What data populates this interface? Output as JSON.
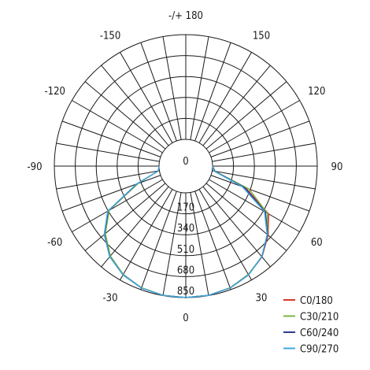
{
  "chart_data": {
    "type": "polar",
    "angle_labels": [
      {
        "deg": 180,
        "text": "-/+ 180"
      },
      {
        "deg": -150,
        "text": "-150"
      },
      {
        "deg": 150,
        "text": "150"
      },
      {
        "deg": -120,
        "text": "-120"
      },
      {
        "deg": 120,
        "text": "120"
      },
      {
        "deg": -90,
        "text": "-90"
      },
      {
        "deg": 90,
        "text": "90"
      },
      {
        "deg": -60,
        "text": "-60"
      },
      {
        "deg": 60,
        "text": "60"
      },
      {
        "deg": -30,
        "text": "-30"
      },
      {
        "deg": 30,
        "text": "30"
      },
      {
        "deg": 0,
        "text": "0"
      }
    ],
    "radial_axis": {
      "max": 850,
      "ticks": [
        0,
        170,
        340,
        510,
        680,
        850
      ],
      "tick_labels": [
        "0",
        "170",
        "340",
        "510",
        "680",
        "850"
      ]
    },
    "angle_grid_step_deg": 10,
    "grid": true,
    "legend_position": "bottom-right",
    "series": [
      {
        "name": "C0/180",
        "color": "#d6362b",
        "angles": [
          -90,
          -80,
          -70,
          -60,
          -50,
          -40,
          -30,
          -20,
          -10,
          0,
          10,
          20,
          30,
          40,
          50,
          60,
          70,
          80,
          90
        ],
        "values": [
          0,
          10,
          200,
          505,
          640,
          740,
          800,
          835,
          848,
          850,
          848,
          835,
          800,
          745,
          655,
          560,
          300,
          20,
          0
        ]
      },
      {
        "name": "C30/210",
        "color": "#7cb342",
        "angles": [
          -90,
          -80,
          -70,
          -60,
          -50,
          -40,
          -30,
          -20,
          -10,
          0,
          10,
          20,
          30,
          40,
          50,
          60,
          70,
          80,
          90
        ],
        "values": [
          0,
          10,
          195,
          500,
          635,
          735,
          798,
          834,
          848,
          850,
          848,
          834,
          798,
          742,
          650,
          548,
          330,
          25,
          0
        ]
      },
      {
        "name": "C60/240",
        "color": "#2b3a8c",
        "angles": [
          -90,
          -80,
          -70,
          -60,
          -50,
          -40,
          -30,
          -20,
          -10,
          0,
          10,
          20,
          30,
          40,
          50,
          60,
          70,
          80,
          90
        ],
        "values": [
          0,
          10,
          205,
          510,
          645,
          742,
          802,
          836,
          848,
          850,
          848,
          836,
          802,
          744,
          650,
          530,
          290,
          20,
          0
        ]
      },
      {
        "name": "C90/270",
        "color": "#3fa9e0",
        "angles": [
          -90,
          -80,
          -70,
          -60,
          -50,
          -40,
          -30,
          -20,
          -10,
          0,
          10,
          20,
          30,
          40,
          50,
          60,
          70,
          80,
          90
        ],
        "values": [
          0,
          10,
          210,
          515,
          648,
          744,
          803,
          836,
          848,
          850,
          848,
          836,
          803,
          742,
          645,
          520,
          270,
          15,
          0
        ]
      }
    ]
  }
}
